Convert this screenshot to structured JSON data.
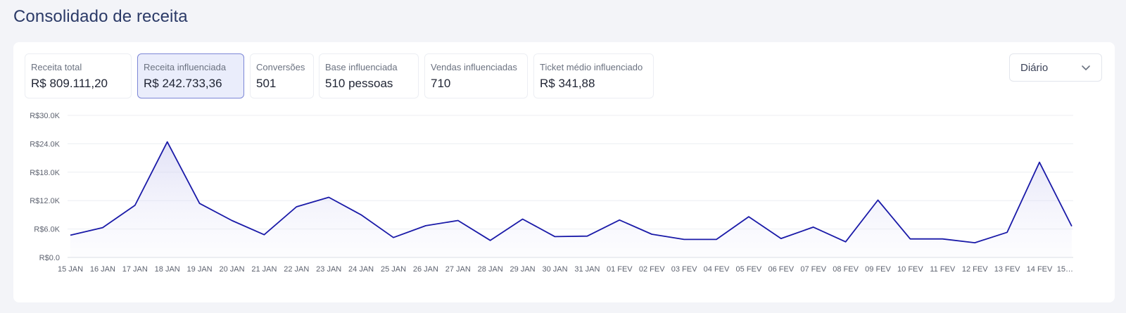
{
  "page": {
    "title": "Consolidado de receita"
  },
  "metrics": [
    {
      "label": "Receita total",
      "value": "R$ 809.111,20",
      "active": false
    },
    {
      "label": "Receita influenciada",
      "value": "R$ 242.733,36",
      "active": true
    },
    {
      "label": "Conversões",
      "value": "501",
      "active": false
    },
    {
      "label": "Base influenciada",
      "value": "510 pessoas",
      "active": false
    },
    {
      "label": "Vendas influenciadas",
      "value": "710",
      "active": false
    },
    {
      "label": "Ticket médio influenciado",
      "value": "R$ 341,88",
      "active": false
    }
  ],
  "period_select": {
    "value": "Diário",
    "icon": "chevron-down-icon"
  },
  "colors": {
    "line": "#1a1aa8",
    "active_bg": "#eaedfb",
    "active_border": "#7c86d6",
    "title": "#2b3a67"
  },
  "chart_data": {
    "type": "area",
    "title": "",
    "xlabel": "",
    "ylabel": "",
    "y_ticks": [
      "R$0.0",
      "R$6.0K",
      "R$12.0K",
      "R$18.0K",
      "R$24.0K",
      "R$30.0K"
    ],
    "ylim": [
      0,
      30000
    ],
    "grid": true,
    "x": [
      "15 JAN",
      "16 JAN",
      "17 JAN",
      "18 JAN",
      "19 JAN",
      "20 JAN",
      "21 JAN",
      "22 JAN",
      "23 JAN",
      "24 JAN",
      "25 JAN",
      "26 JAN",
      "27 JAN",
      "28 JAN",
      "29 JAN",
      "30 JAN",
      "31 JAN",
      "01 FEV",
      "02 FEV",
      "03 FEV",
      "04 FEV",
      "05 FEV",
      "06 FEV",
      "07 FEV",
      "08 FEV",
      "09 FEV",
      "10 FEV",
      "11 FEV",
      "12 FEV",
      "13 FEV",
      "14 FEV",
      "15…"
    ],
    "series": [
      {
        "values": [
          4700,
          6300,
          11000,
          24400,
          11400,
          7800,
          4800,
          10700,
          12700,
          9000,
          4200,
          6700,
          7800,
          3600,
          8100,
          4400,
          4500,
          7900,
          4900,
          3800,
          3800,
          8600,
          4000,
          6400,
          3300,
          12100,
          3900,
          3900,
          3100,
          5300,
          20100,
          6600
        ]
      }
    ]
  }
}
